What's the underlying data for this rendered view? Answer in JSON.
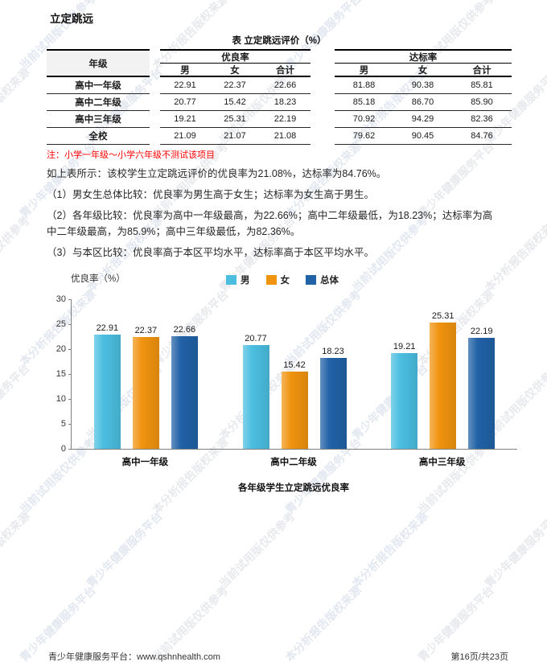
{
  "page": {
    "title": "立定跳远",
    "footer": {
      "left": "青少年健康服务平台：www.qshnhealth.com",
      "right": "第16页/共23页"
    }
  },
  "watermark": {
    "phrases": [
      "青少年健康服务平台",
      "当前试用版仅供参考",
      "本分析报告版权来源"
    ],
    "colors": [
      "#e7e9ed",
      "#e3e7f0"
    ]
  },
  "table": {
    "title": "表 立定跳远评价（%）",
    "row_header": "年级",
    "groups": [
      {
        "label": "优良率",
        "columns": [
          "男",
          "女",
          "合计"
        ]
      },
      {
        "label": "达标率",
        "columns": [
          "男",
          "女",
          "合计"
        ]
      }
    ],
    "rows": [
      {
        "grade": "高中一年级",
        "values": [
          "22.91",
          "22.37",
          "22.66",
          "81.88",
          "90.38",
          "85.81"
        ]
      },
      {
        "grade": "高中二年级",
        "values": [
          "20.77",
          "15.42",
          "18.23",
          "85.18",
          "86.70",
          "85.90"
        ]
      },
      {
        "grade": "高中三年级",
        "values": [
          "19.21",
          "25.31",
          "22.19",
          "70.92",
          "94.29",
          "82.36"
        ]
      },
      {
        "grade": "全校",
        "values": [
          "21.09",
          "21.07",
          "21.08",
          "79.62",
          "90.45",
          "84.76"
        ]
      }
    ],
    "note": "注：小学一年级～小学六年级不测试该项目"
  },
  "summary": {
    "intro": "如上表所示：该校学生立定跳远评价的优良率为21.08%，达标率为84.76%。",
    "items": [
      "（1）男女生总体比较：优良率为男生高于女生；达标率为女生高于男生。",
      "（2）各年级比较：优良率为高中一年级最高，为22.66%；高中二年级最低，为18.23%；达标率为高中二年级最高，为85.9%；高中三年级最低，为82.36%。",
      "（3）与本区比较：优良率高于本区平均水平，达标率高于本区平均水平。"
    ]
  },
  "chart_data": {
    "type": "bar",
    "title": "各年级学生立定跳远优良率",
    "ylabel": "优良率（%）",
    "categories": [
      "高中一年级",
      "高中二年级",
      "高中三年级"
    ],
    "series": [
      {
        "name": "男",
        "color": "#4BBEE0",
        "values": [
          22.91,
          20.77,
          19.21
        ]
      },
      {
        "name": "女",
        "color": "#F0930F",
        "values": [
          22.37,
          15.42,
          25.31
        ]
      },
      {
        "name": "总体",
        "color": "#2161A6",
        "values": [
          22.66,
          18.23,
          22.19
        ]
      }
    ],
    "ylim": [
      0,
      30
    ],
    "yticks": [
      0,
      5,
      10,
      15,
      20,
      25,
      30
    ],
    "grid": false,
    "legend_position": "top-center"
  }
}
